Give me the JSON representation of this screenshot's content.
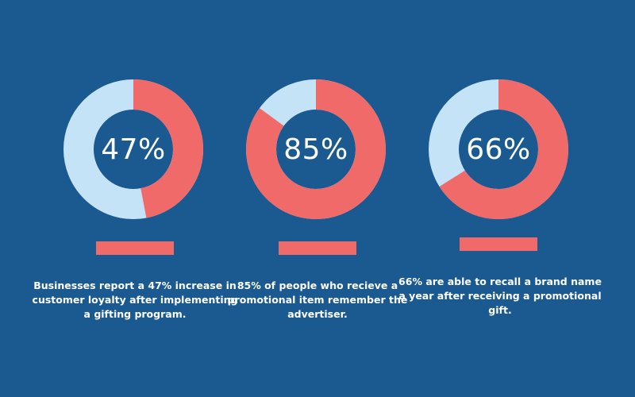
{
  "colors": {
    "background": "#1b5a91",
    "highlight": "#f06a6a",
    "remainder": "#c5e3f7",
    "text": "#ffffff"
  },
  "chart_data": [
    {
      "type": "pie",
      "values": [
        47,
        53
      ],
      "label": "47%",
      "caption": "Businesses report a 47% increase in customer loyalty after implementing a gifting program."
    },
    {
      "type": "pie",
      "values": [
        85,
        15
      ],
      "label": "85%",
      "caption": "85% of people who recieve a promotional item remember the advertiser."
    },
    {
      "type": "pie",
      "values": [
        66,
        34
      ],
      "label": "66%",
      "caption": "66% are able to recall a brand name a year after receiving a promotional gift."
    }
  ]
}
